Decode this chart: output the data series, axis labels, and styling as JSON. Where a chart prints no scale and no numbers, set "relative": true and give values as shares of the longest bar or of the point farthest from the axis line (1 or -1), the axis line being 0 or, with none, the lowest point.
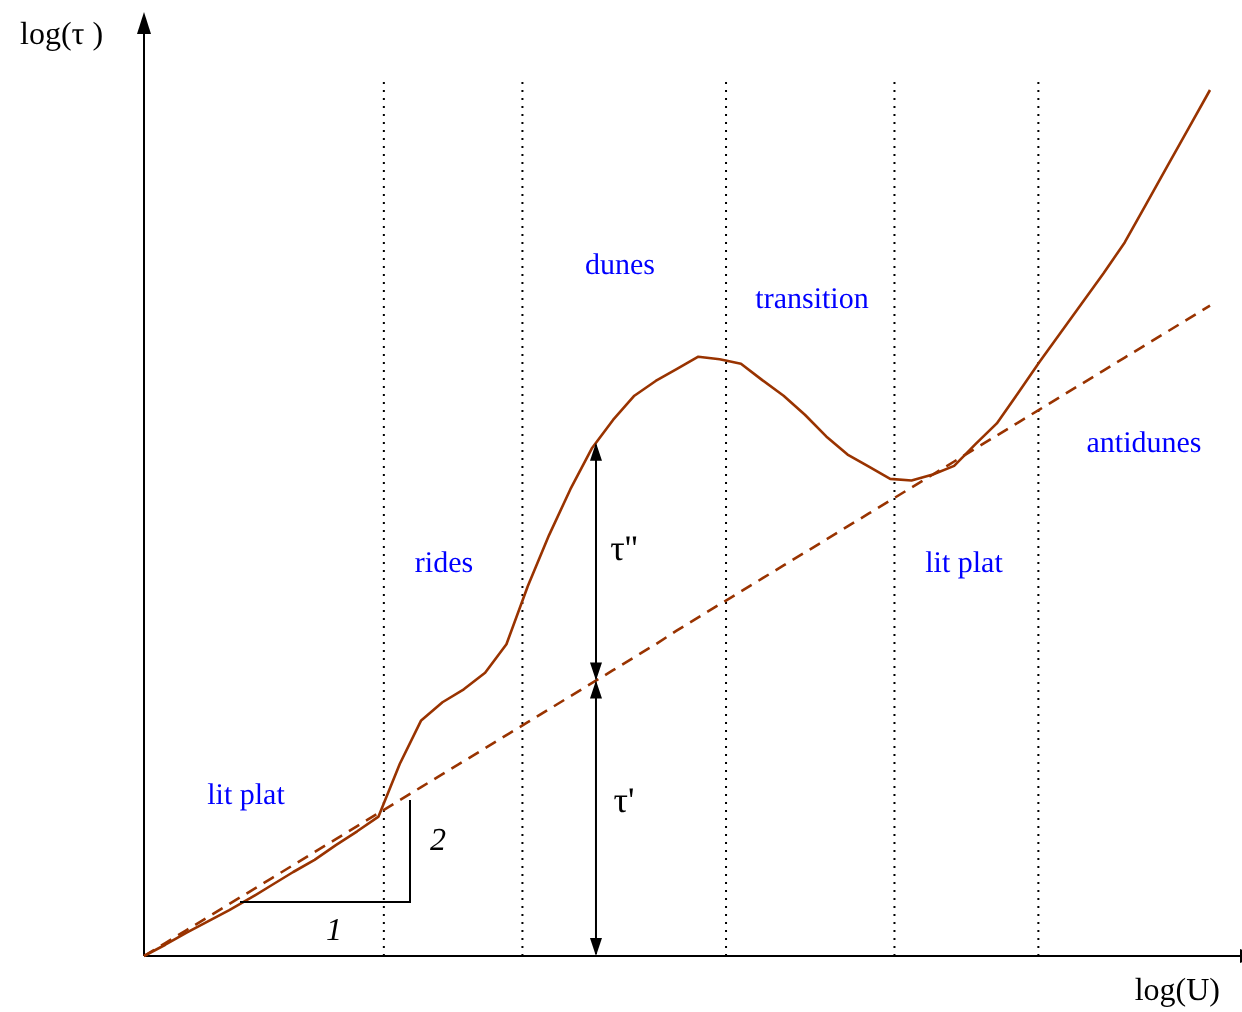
{
  "chart_data": {
    "type": "line",
    "relative": true,
    "xlabel": "log(U)",
    "ylabel": "log(τ )",
    "legend": false,
    "grid": false,
    "categories": [
      null,
      null,
      null,
      null,
      null,
      null,
      null,
      null,
      null,
      null,
      null,
      null,
      null,
      null,
      null,
      null,
      null,
      null,
      null,
      null,
      null,
      null,
      null,
      null,
      null,
      null,
      null,
      null,
      null,
      null,
      null,
      null,
      null,
      null,
      null,
      null,
      null,
      null,
      null,
      null,
      null,
      null,
      null,
      null,
      null,
      null,
      null,
      null,
      null,
      null,
      null
    ],
    "series": [
      {
        "color": "#993300",
        "line_style": "solid",
        "values": [
          0,
          0.013,
          0.027,
          0.04,
          0.053,
          0.067,
          0.082,
          0.097,
          0.111,
          0.128,
          0.144,
          0.161,
          0.222,
          0.272,
          0.293,
          0.308,
          0.327,
          0.36,
          0.427,
          0.486,
          0.539,
          0.586,
          0.619,
          0.647,
          0.664,
          0.678,
          0.692,
          0.689,
          0.684,
          0.665,
          0.647,
          0.625,
          0.6,
          0.579,
          0.565,
          0.551,
          0.549,
          0.556,
          0.566,
          0.591,
          0.615,
          0.65,
          0.686,
          0.72,
          0.754,
          0.788,
          0.824,
          0.868,
          0.912,
          0.956,
          1
        ]
      },
      {
        "color": "#993300",
        "line_style": "dashed",
        "values": [
          0,
          0.015,
          0.03,
          0.045,
          0.06,
          0.075,
          0.09,
          0.105,
          0.12,
          0.135,
          0.15,
          0.165,
          0.18,
          0.195,
          0.21,
          0.225,
          0.24,
          0.255,
          0.27,
          0.285,
          0.3,
          0.315,
          0.33,
          0.345,
          0.36,
          0.376,
          0.391,
          0.406,
          0.421,
          0.436,
          0.451,
          0.466,
          0.481,
          0.496,
          0.511,
          0.526,
          0.541,
          0.556,
          0.571,
          0.586,
          0.601,
          0.616,
          0.631,
          0.646,
          0.661,
          0.676,
          0.691,
          0.706,
          0.721,
          0.736,
          0.751
        ]
      }
    ],
    "annotations": [
      "lit plat",
      "rides",
      "dunes",
      "transition",
      "lit plat",
      "antidunes",
      "τ''",
      "τ'",
      "1",
      "2"
    ]
  }
}
